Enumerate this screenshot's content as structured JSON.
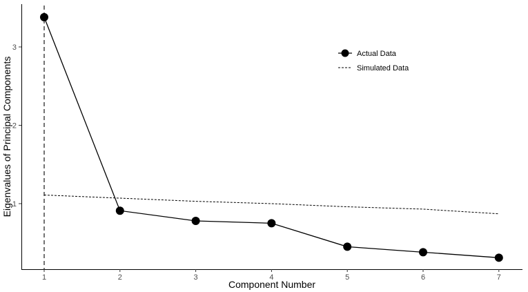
{
  "chart_data": {
    "type": "line",
    "title": "",
    "xlabel": "Component Number",
    "ylabel": "Eigenvalues of Principal Components",
    "x": [
      1,
      2,
      3,
      4,
      5,
      6,
      7
    ],
    "x_ticks": [
      "1",
      "2",
      "3",
      "4",
      "5",
      "6",
      "7"
    ],
    "y_ticks": [
      "1",
      "2",
      "3"
    ],
    "xlim": [
      0.5,
      7.3
    ],
    "ylim": [
      0.05,
      3.55
    ],
    "grid": false,
    "legend_position": "top-right",
    "reference_vline_x": 1,
    "series": [
      {
        "name": "Actual Data",
        "style": "solid-with-points",
        "values": [
          3.38,
          0.91,
          0.78,
          0.75,
          0.45,
          0.38,
          0.31
        ]
      },
      {
        "name": "Simulated Data",
        "style": "dashed",
        "values": [
          1.11,
          1.07,
          1.03,
          1.0,
          0.96,
          0.93,
          0.87
        ]
      }
    ],
    "colors": {
      "line": "#000000",
      "axis": "#000000",
      "tick_label": "#4d4d4d"
    }
  }
}
